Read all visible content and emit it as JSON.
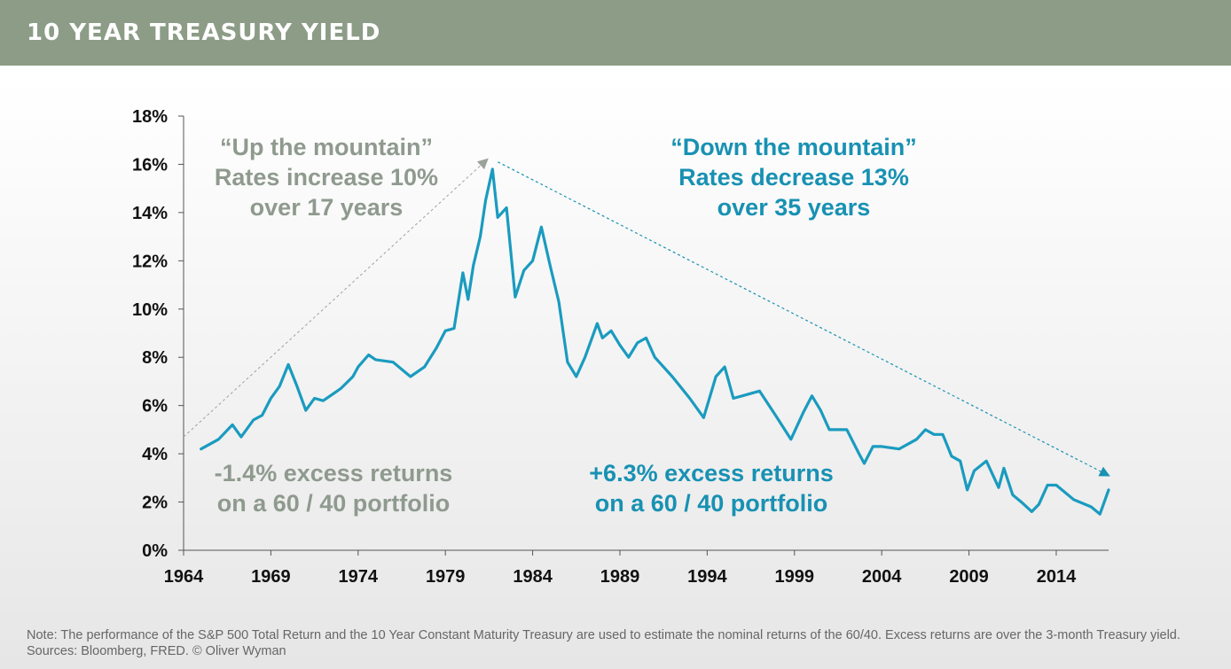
{
  "header": {
    "title": "10 YEAR TREASURY YIELD"
  },
  "footnote": "Note: The performance of the S&P 500 Total Return and the 10 Year Constant Maturity Treasury are used to estimate the nominal returns of the 60/40. Excess returns are over the 3-month Treasury yield. Sources: Bloomberg, FRED. © Oliver Wyman",
  "colors": {
    "header_bg": "#8c9c87",
    "series": "#1a9bbf",
    "gray_annotation": "#8f9a8e",
    "teal_annotation": "#1891b3"
  },
  "chart_data": {
    "type": "line",
    "title": "",
    "xlabel": "",
    "ylabel": "",
    "xlim": [
      1964,
      2017
    ],
    "ylim": [
      0,
      18
    ],
    "x_ticks": [
      1964,
      1969,
      1974,
      1979,
      1984,
      1989,
      1994,
      1999,
      2004,
      2009,
      2014
    ],
    "x_tick_labels": [
      "1964",
      "1969",
      "1974",
      "1979",
      "1984",
      "1989",
      "1994",
      "1999",
      "2004",
      "2009",
      "2014"
    ],
    "y_ticks": [
      0,
      2,
      4,
      6,
      8,
      10,
      12,
      14,
      16,
      18
    ],
    "y_tick_labels": [
      "0%",
      "2%",
      "4%",
      "6%",
      "8%",
      "10%",
      "12%",
      "14%",
      "16%",
      "18%"
    ],
    "grid": false,
    "legend": "none",
    "series": [
      {
        "x": [
          1965,
          1966,
          1966.8,
          1967.3,
          1968,
          1968.5,
          1969,
          1969.5,
          1970,
          1970.5,
          1971,
          1971.5,
          1972,
          1973,
          1973.7,
          1974,
          1974.6,
          1975,
          1976,
          1977,
          1977.8,
          1978.5,
          1979,
          1979.5,
          1980,
          1980.3,
          1980.6,
          1981,
          1981.3,
          1981.7,
          1982,
          1982.5,
          1983,
          1983.5,
          1984,
          1984.5,
          1985,
          1985.5,
          1986,
          1986.5,
          1987,
          1987.7,
          1988,
          1988.5,
          1989,
          1989.5,
          1990,
          1990.5,
          1991,
          1992,
          1993,
          1993.8,
          1994.5,
          1995,
          1995.5,
          1996,
          1997,
          1998,
          1998.8,
          1999.5,
          2000,
          2000.5,
          2001,
          2002,
          2002.7,
          2003,
          2003.5,
          2004,
          2005,
          2006,
          2006.5,
          2007,
          2007.5,
          2008,
          2008.5,
          2008.9,
          2009.3,
          2010,
          2010.7,
          2011,
          2011.5,
          2012,
          2012.6,
          2013,
          2013.5,
          2014,
          2015,
          2016,
          2016.5,
          2017
        ],
        "y": [
          4.2,
          4.6,
          5.2,
          4.7,
          5.4,
          5.6,
          6.3,
          6.8,
          7.7,
          6.8,
          5.8,
          6.3,
          6.2,
          6.7,
          7.2,
          7.6,
          8.1,
          7.9,
          7.8,
          7.2,
          7.6,
          8.4,
          9.1,
          9.2,
          11.5,
          10.4,
          11.8,
          13.0,
          14.5,
          15.8,
          13.8,
          14.2,
          10.5,
          11.6,
          12.0,
          13.4,
          11.8,
          10.3,
          7.8,
          7.2,
          8.0,
          9.4,
          8.8,
          9.1,
          8.5,
          8.0,
          8.6,
          8.8,
          8.0,
          7.2,
          6.3,
          5.5,
          7.2,
          7.6,
          6.3,
          6.4,
          6.6,
          5.5,
          4.6,
          5.7,
          6.4,
          5.8,
          5.0,
          5.0,
          4.0,
          3.6,
          4.3,
          4.3,
          4.2,
          4.6,
          5.0,
          4.8,
          4.8,
          3.9,
          3.7,
          2.5,
          3.3,
          3.7,
          2.6,
          3.4,
          2.3,
          2.0,
          1.6,
          1.9,
          2.7,
          2.7,
          2.1,
          1.8,
          1.5,
          2.5
        ]
      }
    ],
    "annotations": [
      {
        "lines": [
          "“Up the mountain”",
          "Rates increase 10%",
          "over 17 years"
        ],
        "color": "gray"
      },
      {
        "lines": [
          "“Down the mountain”",
          "Rates decrease 13%",
          "over 35 years"
        ],
        "color": "teal"
      },
      {
        "lines": [
          "-1.4% excess returns",
          "on a 60 / 40 portfolio"
        ],
        "color": "gray"
      },
      {
        "lines": [
          "+6.3% excess returns",
          "on a 60 / 40 portfolio"
        ],
        "color": "teal"
      }
    ]
  }
}
